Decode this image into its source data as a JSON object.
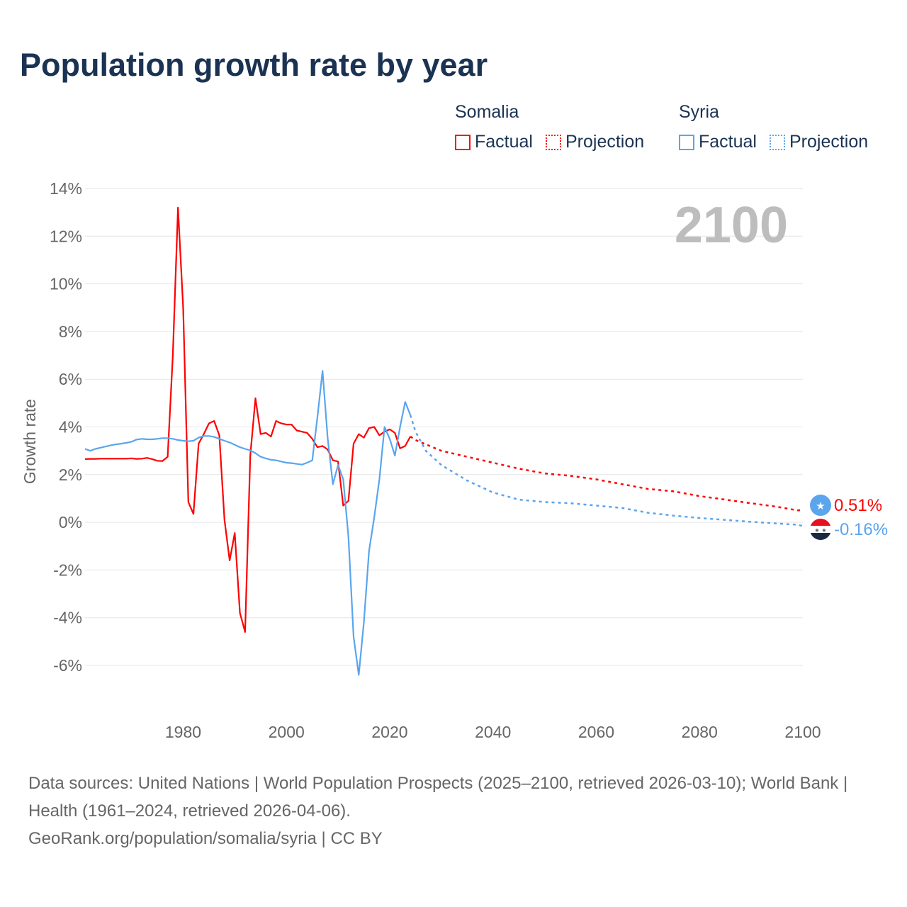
{
  "title": "Population growth rate by year",
  "legend": {
    "groups": [
      {
        "name": "Somalia",
        "color": "#ff0000",
        "items": [
          "Factual",
          "Projection"
        ]
      },
      {
        "name": "Syria",
        "color": "#5aa5ee",
        "items": [
          "Factual",
          "Projection"
        ]
      }
    ]
  },
  "footer": {
    "sources": "Data sources: United Nations | World Population Prospects (2025–2100, retrieved 2026-03-10); World Bank | Health (1961–2024, retrieved 2026-04-06).",
    "credit": "GeoRank.org/population/somalia/syria | CC BY"
  },
  "chart_data": {
    "type": "line",
    "title": "Population growth rate by year",
    "xlabel": "",
    "ylabel": "Growth rate",
    "current_year_label": "2100",
    "xlim": [
      1961,
      2100
    ],
    "ylim": [
      -8,
      14
    ],
    "yticks": [
      14,
      12,
      10,
      8,
      6,
      4,
      2,
      0,
      -2,
      -4,
      -6
    ],
    "ytick_labels": [
      "14%",
      "12%",
      "10%",
      "8%",
      "6%",
      "4%",
      "2%",
      "0%",
      "-2%",
      "-4%",
      "-6%"
    ],
    "xticks": [
      1980,
      2000,
      2020,
      2040,
      2060,
      2080,
      2100
    ],
    "xtick_labels": [
      "1980",
      "2000",
      "2020",
      "2040",
      "2060",
      "2080",
      "2100"
    ],
    "grid": true,
    "legend_position": "top-right",
    "series": [
      {
        "name": "Somalia",
        "color": "#ff0000",
        "end_label": "0.51%",
        "factual": {
          "x": [
            1961,
            1962,
            1963,
            1964,
            1965,
            1966,
            1967,
            1968,
            1969,
            1970,
            1971,
            1972,
            1973,
            1974,
            1975,
            1976,
            1977,
            1978,
            1979,
            1980,
            1981,
            1982,
            1983,
            1984,
            1985,
            1986,
            1987,
            1988,
            1989,
            1990,
            1991,
            1992,
            1993,
            1994,
            1995,
            1996,
            1997,
            1998,
            1999,
            2000,
            2001,
            2002,
            2003,
            2004,
            2005,
            2006,
            2007,
            2008,
            2009,
            2010,
            2011,
            2012,
            2013,
            2014,
            2015,
            2016,
            2017,
            2018,
            2019,
            2020,
            2021,
            2022,
            2023,
            2024
          ],
          "y": [
            2.65,
            2.66,
            2.66,
            2.67,
            2.67,
            2.67,
            2.67,
            2.67,
            2.67,
            2.68,
            2.66,
            2.67,
            2.7,
            2.65,
            2.58,
            2.57,
            2.75,
            7.0,
            13.2,
            9.0,
            0.85,
            0.35,
            3.3,
            3.7,
            4.15,
            4.25,
            3.65,
            0.1,
            -1.6,
            -0.45,
            -3.8,
            -4.6,
            2.8,
            5.2,
            3.7,
            3.75,
            3.6,
            4.25,
            4.15,
            4.1,
            4.1,
            3.85,
            3.8,
            3.75,
            3.5,
            3.15,
            3.2,
            3.05,
            2.6,
            2.55,
            0.7,
            0.9,
            3.3,
            3.7,
            3.55,
            3.95,
            4.0,
            3.65,
            3.8,
            3.9,
            3.75,
            3.1,
            3.2,
            3.6
          ]
        },
        "projection": {
          "x": [
            2024,
            2025,
            2030,
            2035,
            2040,
            2045,
            2050,
            2055,
            2060,
            2065,
            2070,
            2075,
            2080,
            2085,
            2090,
            2095,
            2099,
            2100
          ],
          "y": [
            3.6,
            3.45,
            3.0,
            2.75,
            2.5,
            2.25,
            2.05,
            1.95,
            1.8,
            1.6,
            1.4,
            1.3,
            1.1,
            0.95,
            0.8,
            0.65,
            0.5,
            0.51
          ]
        }
      },
      {
        "name": "Syria",
        "color": "#5aa5ee",
        "end_label": "-0.16%",
        "factual": {
          "x": [
            1961,
            1962,
            1963,
            1964,
            1965,
            1966,
            1967,
            1968,
            1969,
            1970,
            1971,
            1972,
            1973,
            1974,
            1975,
            1976,
            1977,
            1978,
            1979,
            1980,
            1981,
            1982,
            1983,
            1984,
            1985,
            1986,
            1987,
            1988,
            1989,
            1990,
            1991,
            1992,
            1993,
            1994,
            1995,
            1996,
            1997,
            1998,
            1999,
            2000,
            2001,
            2002,
            2003,
            2004,
            2005,
            2006,
            2007,
            2008,
            2009,
            2010,
            2011,
            2012,
            2013,
            2014,
            2015,
            2016,
            2017,
            2018,
            2019,
            2020,
            2021,
            2022,
            2023,
            2024
          ],
          "y": [
            3.08,
            3.0,
            3.08,
            3.13,
            3.18,
            3.23,
            3.27,
            3.3,
            3.33,
            3.38,
            3.47,
            3.5,
            3.48,
            3.48,
            3.5,
            3.53,
            3.53,
            3.5,
            3.45,
            3.42,
            3.4,
            3.42,
            3.55,
            3.62,
            3.62,
            3.58,
            3.5,
            3.42,
            3.35,
            3.25,
            3.15,
            3.08,
            3.02,
            2.9,
            2.75,
            2.68,
            2.62,
            2.6,
            2.55,
            2.5,
            2.48,
            2.45,
            2.42,
            2.5,
            2.6,
            4.4,
            6.35,
            3.5,
            1.6,
            2.4,
            1.8,
            -0.6,
            -4.8,
            -6.4,
            -4.2,
            -1.2,
            0.2,
            1.8,
            4.0,
            3.5,
            2.8,
            4.0,
            5.05,
            4.5
          ]
        },
        "projection": {
          "x": [
            2024,
            2025,
            2027,
            2030,
            2035,
            2040,
            2045,
            2050,
            2055,
            2060,
            2065,
            2070,
            2075,
            2080,
            2085,
            2090,
            2095,
            2099,
            2100
          ],
          "y": [
            4.5,
            3.8,
            3.0,
            2.4,
            1.75,
            1.25,
            0.95,
            0.85,
            0.8,
            0.7,
            0.6,
            0.4,
            0.28,
            0.18,
            0.1,
            0.02,
            -0.05,
            -0.1,
            -0.16
          ]
        }
      }
    ]
  }
}
